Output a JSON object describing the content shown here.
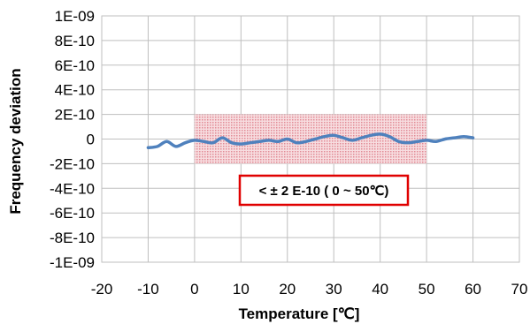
{
  "chart_data": {
    "type": "line",
    "xlabel": "Temperature [℃]",
    "ylabel": "Frequency deviation",
    "xlim": [
      -20,
      70
    ],
    "ylim": [
      -1e-09,
      1e-09
    ],
    "xticks": [
      -20,
      -10,
      0,
      10,
      20,
      30,
      40,
      50,
      60,
      70
    ],
    "xtick_labels": [
      "-20",
      "-10",
      "0",
      "10",
      "20",
      "30",
      "40",
      "50",
      "60",
      "70"
    ],
    "yticks": [
      1e-09,
      8e-10,
      6e-10,
      4e-10,
      2e-10,
      0,
      -2e-10,
      -4e-10,
      -6e-10,
      -8e-10,
      -1e-09
    ],
    "ytick_labels": [
      "1E-09",
      "8E-10",
      "6E-10",
      "4E-10",
      "2E-10",
      "0",
      "-2E-10",
      "-4E-10",
      "-6E-10",
      "-8E-10",
      "-1E-09"
    ],
    "grid": true,
    "series": [
      {
        "color": "#4f81bd",
        "x": [
          -10,
          -8,
          -6,
          -4,
          -2,
          0,
          2,
          4,
          6,
          8,
          10,
          12,
          14,
          16,
          18,
          20,
          22,
          24,
          26,
          28,
          30,
          32,
          34,
          36,
          38,
          40,
          42,
          44,
          46,
          48,
          50,
          52,
          54,
          56,
          58,
          60
        ],
        "y": [
          -7e-11,
          -6e-11,
          -2e-11,
          -6e-11,
          -3e-11,
          -1e-11,
          -2e-11,
          -3e-11,
          1e-11,
          -3e-11,
          -4e-11,
          -3e-11,
          -2e-11,
          -1e-11,
          -2e-11,
          0,
          -3e-11,
          -2e-11,
          0,
          2e-11,
          3e-11,
          1e-11,
          -1e-11,
          1e-11,
          3e-11,
          4e-11,
          2e-11,
          -2e-11,
          -3e-11,
          -2e-11,
          -1e-11,
          -2e-11,
          0,
          1e-11,
          2e-11,
          1e-11
        ]
      }
    ],
    "band": {
      "x": [
        0,
        50
      ],
      "y": [
        -2e-10,
        2e-10
      ],
      "color": "#e8a0a8"
    },
    "annotation": {
      "text": "< ± 2 E-10 ( 0 ~ 50℃)",
      "border_color": "#e00000"
    }
  }
}
